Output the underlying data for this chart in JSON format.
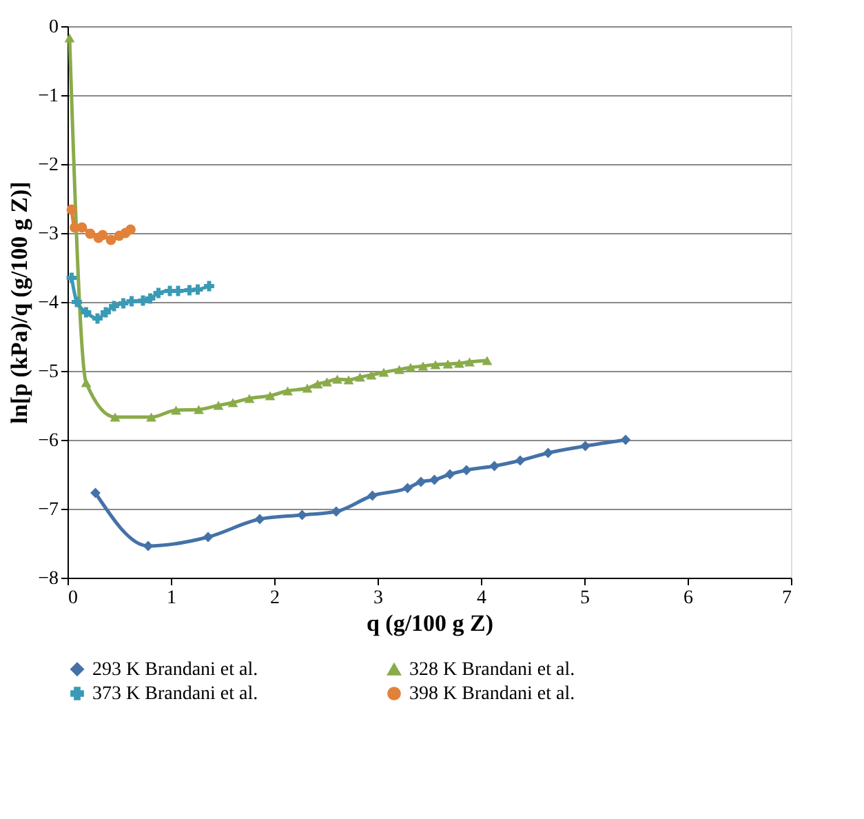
{
  "chart_data": {
    "type": "line",
    "xlabel": "q (g/100 g Z)",
    "ylabel": "ln[p (kPa)/q (g/100 g Z)]",
    "xlim": [
      0,
      7
    ],
    "xticks": [
      0,
      1,
      2,
      3,
      4,
      5,
      6,
      7
    ],
    "ylim": [
      -8,
      0
    ],
    "yticks": [
      -8,
      -7,
      -6,
      -5,
      -4,
      -3,
      -2,
      -1,
      0
    ],
    "grid": "y",
    "legend": "bottom",
    "line_style": "solid",
    "series": [
      {
        "name": "293 K Brandani et al.",
        "color": "#4472a8",
        "marker": "diamond",
        "x": [
          0.27,
          0.78,
          1.36,
          1.86,
          2.27,
          2.6,
          2.95,
          3.29,
          3.42,
          3.55,
          3.7,
          3.86,
          4.13,
          4.38,
          4.65,
          5.01,
          5.4
        ],
        "values": [
          -6.77,
          -7.54,
          -7.41,
          -7.15,
          -7.09,
          -7.04,
          -6.81,
          -6.7,
          -6.61,
          -6.58,
          -6.5,
          -6.44,
          -6.38,
          -6.3,
          -6.19,
          -6.09,
          -6.0
        ]
      },
      {
        "name": "328 K Brandani et al.",
        "color": "#8aab4a",
        "marker": "triangle",
        "x": [
          0.02,
          0.18,
          0.46,
          0.81,
          1.05,
          1.27,
          1.46,
          1.6,
          1.76,
          1.96,
          2.13,
          2.32,
          2.42,
          2.51,
          2.61,
          2.72,
          2.83,
          2.94,
          3.06,
          3.21,
          3.32,
          3.44,
          3.56,
          3.68,
          3.79,
          3.89,
          4.06
        ],
        "values": [
          -0.17,
          -5.17,
          -5.67,
          -5.67,
          -5.57,
          -5.56,
          -5.5,
          -5.46,
          -5.4,
          -5.36,
          -5.29,
          -5.25,
          -5.19,
          -5.16,
          -5.12,
          -5.13,
          -5.09,
          -5.06,
          -5.02,
          -4.98,
          -4.95,
          -4.93,
          -4.91,
          -4.9,
          -4.89,
          -4.87,
          -4.85
        ]
      },
      {
        "name": "373 K Brandani et al.",
        "color": "#3a9ab5",
        "marker": "cross",
        "x": [
          0.04,
          0.09,
          0.18,
          0.29,
          0.37,
          0.45,
          0.54,
          0.62,
          0.73,
          0.8,
          0.88,
          0.99,
          1.07,
          1.18,
          1.26,
          1.37
        ],
        "values": [
          -3.65,
          -4.0,
          -4.15,
          -4.24,
          -4.15,
          -4.06,
          -4.02,
          -3.99,
          -3.98,
          -3.95,
          -3.87,
          -3.84,
          -3.84,
          -3.83,
          -3.82,
          -3.77
        ]
      },
      {
        "name": "398 K Brandani et al.",
        "color": "#e2813a",
        "marker": "circle",
        "x": [
          0.04,
          0.07,
          0.14,
          0.22,
          0.3,
          0.34,
          0.42,
          0.5,
          0.56,
          0.61
        ],
        "values": [
          -2.66,
          -2.92,
          -2.92,
          -3.01,
          -3.07,
          -3.03,
          -3.1,
          -3.04,
          -3.0,
          -2.95
        ]
      }
    ]
  }
}
